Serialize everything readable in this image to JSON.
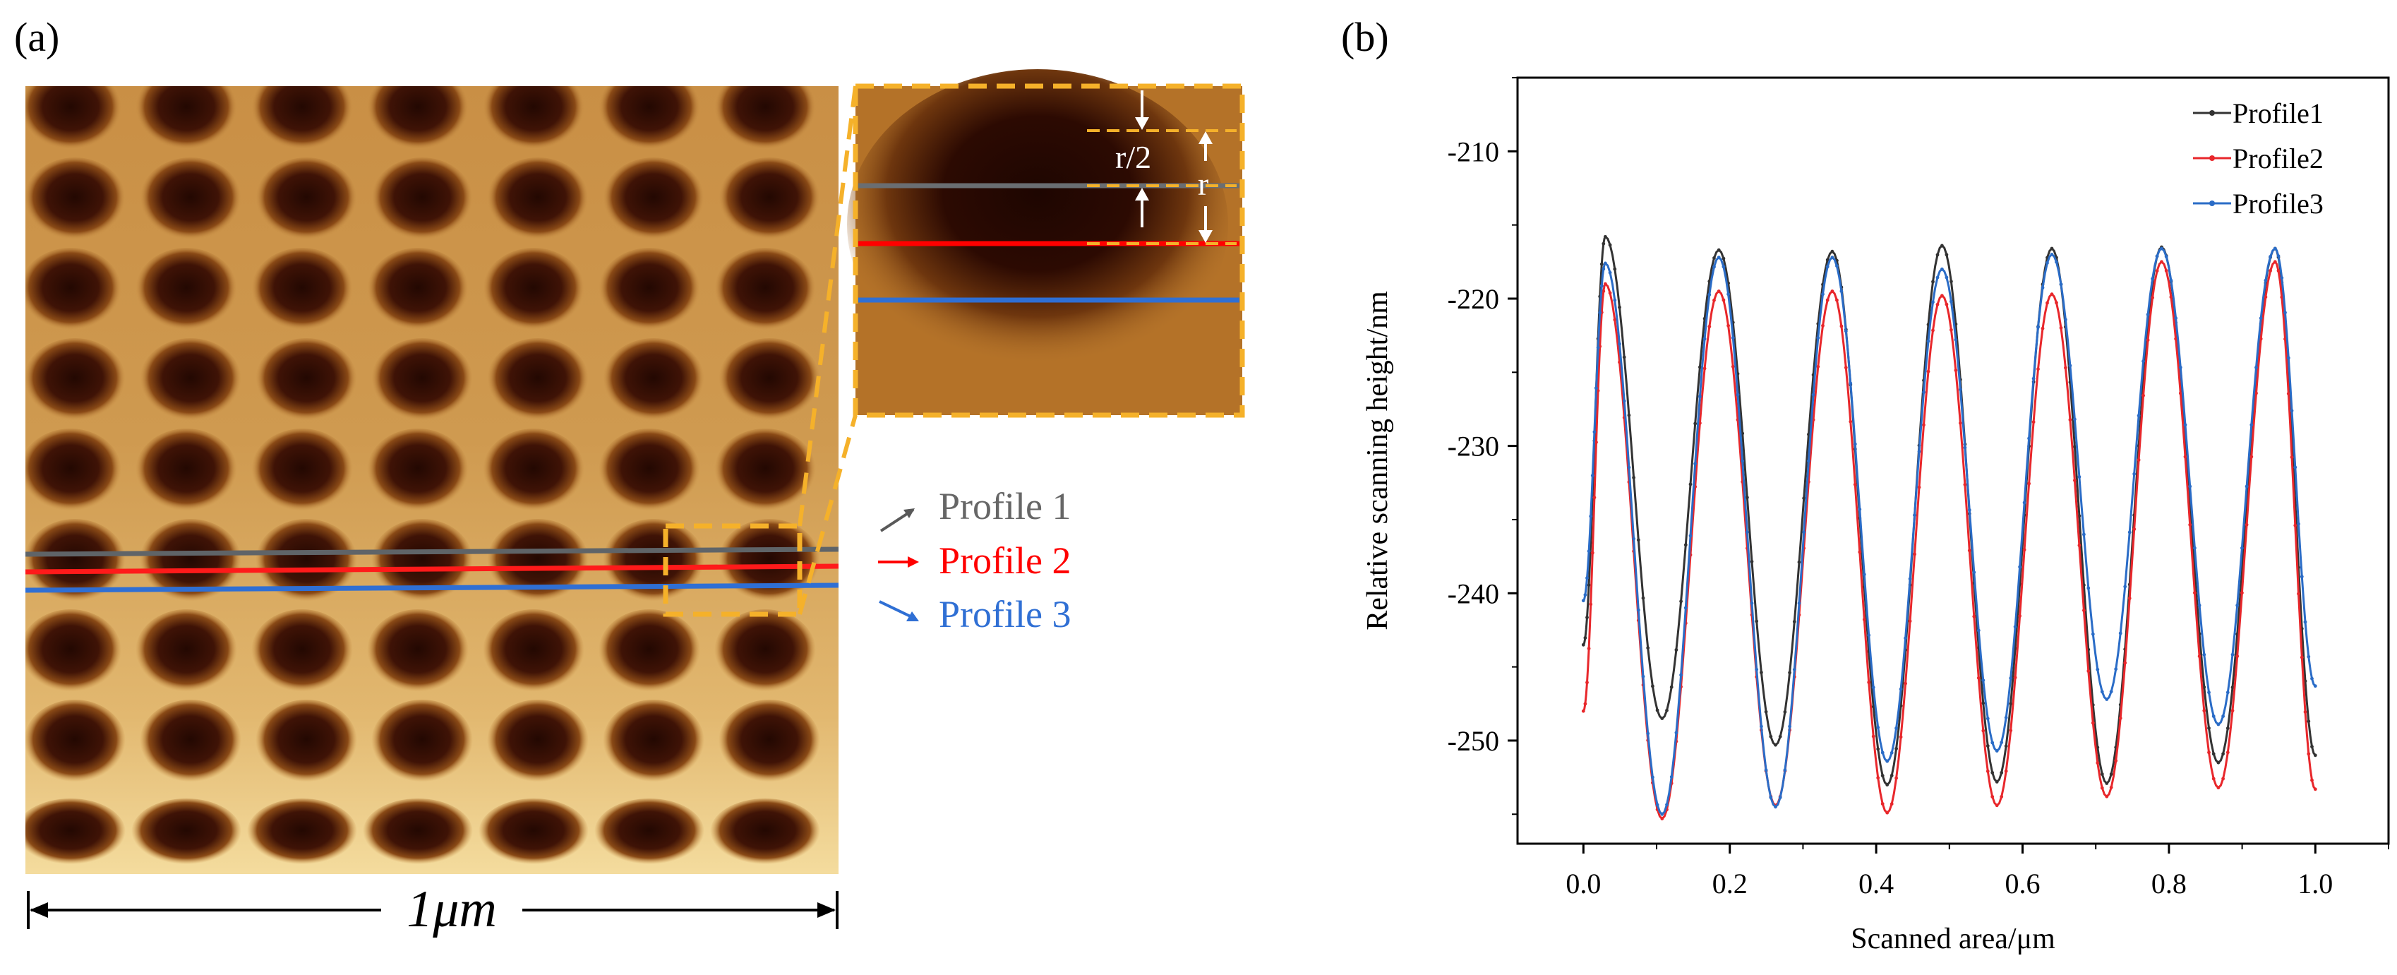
{
  "panel_a": {
    "label": "(a)",
    "scale_bar": "1μm",
    "inset_labels": {
      "half_radius": "r/2",
      "radius": "r"
    },
    "profiles": [
      {
        "name": "Profile 1",
        "color": "#595959"
      },
      {
        "name": "Profile 2",
        "color": "#ff0000"
      },
      {
        "name": "Profile 3",
        "color": "#2f6fd4"
      }
    ],
    "colors": {
      "afm_light": "#d6a85e",
      "afm_dark": "#2a0a03",
      "highlight": "#f5b12a"
    }
  },
  "chart_data": {
    "type": "line",
    "panel_label": "(b)",
    "title": "",
    "xlabel": "Scanned area/μm",
    "ylabel": "Relative scanning height/nm",
    "xlim": [
      -0.09,
      1.1
    ],
    "ylim": [
      -257,
      -205
    ],
    "xticks": [
      "0.0",
      "0.2",
      "0.4",
      "0.6",
      "0.8",
      "1.0"
    ],
    "yticks": [
      "-210",
      "-220",
      "-230",
      "-240",
      "-250"
    ],
    "legend_position": "top-right",
    "x_range": [
      0.0,
      1.0
    ],
    "peak_x": [
      0.03,
      0.185,
      0.34,
      0.49,
      0.64,
      0.79,
      0.945
    ],
    "series": [
      {
        "name": "Profile1",
        "color": "#333333",
        "start": -243.5,
        "end": -251,
        "peaks": [
          -215.8,
          -216.7,
          -216.8,
          -216.4,
          -216.6,
          -216.5,
          -216.6
        ],
        "valleys": [
          -248.5,
          -250.3,
          -253,
          -252.8,
          -252.9,
          -251.5
        ]
      },
      {
        "name": "Profile2",
        "color": "#e8272b",
        "start": -248,
        "end": -253.3,
        "peaks": [
          -219,
          -219.5,
          -219.5,
          -219.8,
          -219.7,
          -217.5,
          -217.5
        ],
        "valleys": [
          -255.3,
          -254.4,
          -254.9,
          -254.4,
          -253.8,
          -253.2
        ]
      },
      {
        "name": "Profile3",
        "color": "#2a6cc7",
        "start": -240.5,
        "end": -246.3,
        "peaks": [
          -217.6,
          -217.2,
          -217.2,
          -218,
          -217,
          -216.6,
          -216.6
        ],
        "valleys": [
          -255,
          -254.5,
          -251.4,
          -250.7,
          -247.2,
          -248.9
        ]
      }
    ]
  }
}
